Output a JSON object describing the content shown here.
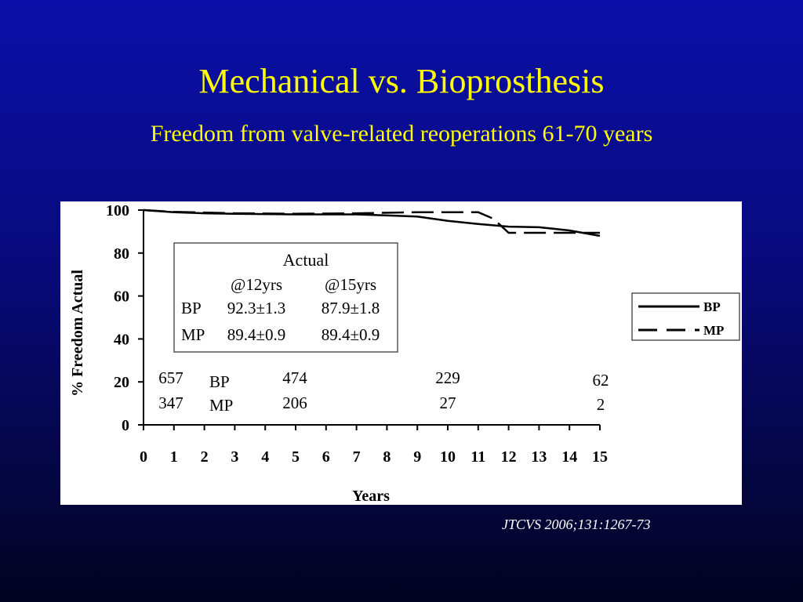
{
  "slide": {
    "title": "Mechanical vs. Bioprosthesis",
    "subtitle": "Freedom from valve-related reoperations 61-70 years",
    "citation": "JTCVS 2006;131:1267-73"
  },
  "chart_data": {
    "type": "line",
    "xlabel": "Years",
    "ylabel": "% Freedom Actual",
    "xlim": [
      0,
      15
    ],
    "ylim": [
      0,
      100
    ],
    "x_ticks": [
      0,
      1,
      2,
      3,
      4,
      5,
      6,
      7,
      8,
      9,
      10,
      11,
      12,
      13,
      14,
      15
    ],
    "y_ticks": [
      0,
      20,
      40,
      60,
      80,
      100
    ],
    "grid": false,
    "series": [
      {
        "name": "BP",
        "style": "solid",
        "points": [
          [
            0,
            100
          ],
          [
            1,
            99
          ],
          [
            2,
            98.5
          ],
          [
            3,
            98.3
          ],
          [
            5,
            98
          ],
          [
            7,
            98
          ],
          [
            9,
            97
          ],
          [
            10,
            95
          ],
          [
            11,
            93.5
          ],
          [
            12,
            92.3
          ],
          [
            13,
            92
          ],
          [
            14,
            90.5
          ],
          [
            15,
            88
          ]
        ]
      },
      {
        "name": "MP",
        "style": "dashed",
        "points": [
          [
            0,
            100
          ],
          [
            1,
            99.2
          ],
          [
            3,
            98.5
          ],
          [
            5,
            98.3
          ],
          [
            7,
            98.5
          ],
          [
            9,
            99
          ],
          [
            11,
            99
          ],
          [
            11.5,
            96
          ],
          [
            12,
            89.4
          ],
          [
            15,
            89.4
          ]
        ]
      }
    ],
    "legend": {
      "position": "right",
      "entries": [
        "BP",
        "MP"
      ]
    },
    "actual_table": {
      "title": "Actual",
      "headers": [
        "@12yrs",
        "@15yrs"
      ],
      "rows": [
        {
          "label": "BP",
          "values": [
            "92.3±1.3",
            "87.9±1.8"
          ]
        },
        {
          "label": "MP",
          "values": [
            "89.4±0.9",
            "89.4±0.9"
          ]
        }
      ]
    },
    "at_risk": {
      "labels": [
        "BP",
        "MP"
      ],
      "columns": [
        {
          "year": 0,
          "bp": "657",
          "mp": "347"
        },
        {
          "year": 5,
          "bp": "474",
          "mp": "206"
        },
        {
          "year": 10,
          "bp": "229",
          "mp": "27"
        },
        {
          "year": 15,
          "bp": "62",
          "mp": "2"
        }
      ]
    }
  }
}
